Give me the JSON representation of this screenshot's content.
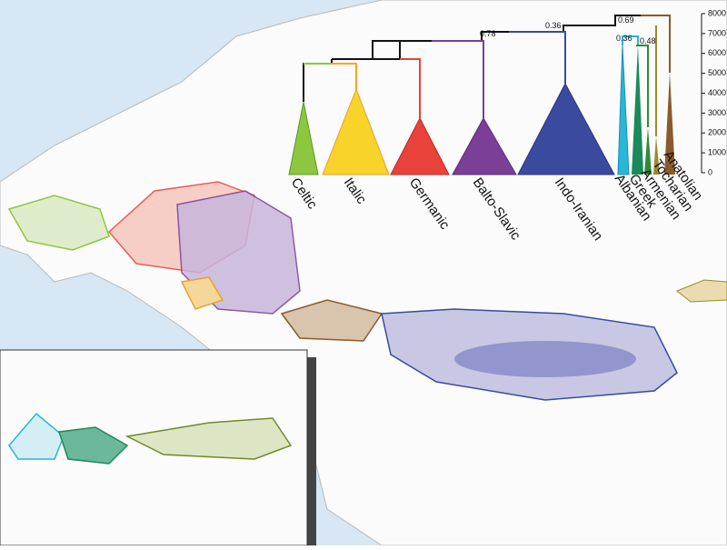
{
  "tree": {
    "axis": {
      "lim": [
        0,
        8000
      ],
      "ticks": [
        0,
        1000,
        2000,
        3000,
        4000,
        5000,
        6000,
        7000,
        8000
      ]
    },
    "clades": [
      "Celtic",
      "Italic",
      "Germanic",
      "Balto-Slavic",
      "Indo-Iranian",
      "Albanian",
      "Greek",
      "Armenian",
      "Tocharian",
      "Anatolian"
    ],
    "support": [
      "0.78",
      "0.36",
      "0.69",
      "0.36",
      "0.48"
    ]
  }
}
